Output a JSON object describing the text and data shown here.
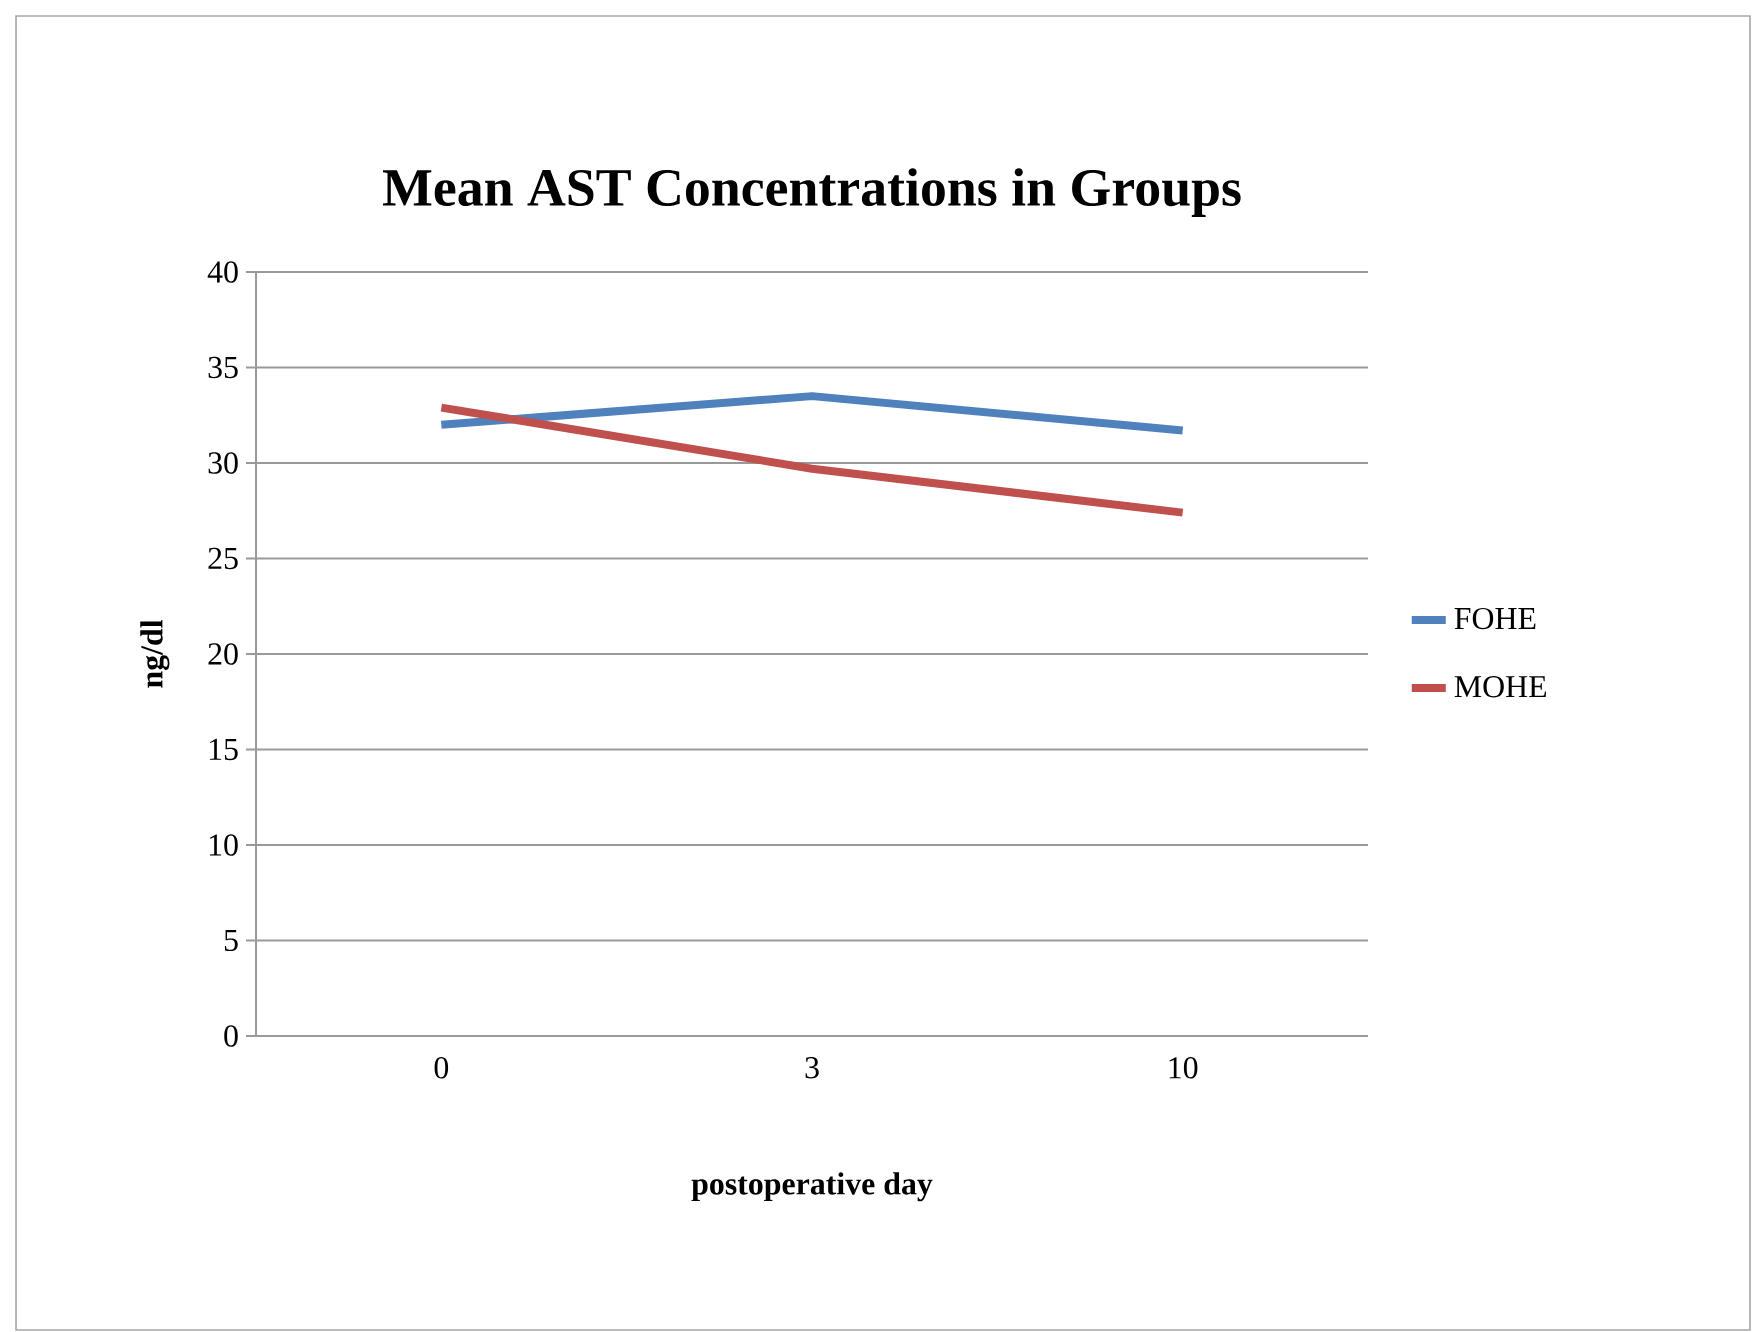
{
  "chart_data": {
    "type": "line",
    "title": "Mean AST Concentrations in Groups",
    "xlabel": "postoperative day",
    "ylabel": "ng/dl",
    "categories": [
      "0",
      "3",
      "10"
    ],
    "series": [
      {
        "name": "FOHE",
        "color": "#4f81bd",
        "values": [
          32.0,
          33.5,
          31.7
        ]
      },
      {
        "name": "MOHE",
        "color": "#c0504d",
        "values": [
          32.9,
          29.7,
          27.4
        ]
      }
    ],
    "ylim": [
      0,
      40
    ],
    "yticks": [
      0,
      5,
      10,
      15,
      20,
      25,
      30,
      35,
      40
    ],
    "grid": "y",
    "legend": "right",
    "marker": "none",
    "line_style": "solid"
  }
}
